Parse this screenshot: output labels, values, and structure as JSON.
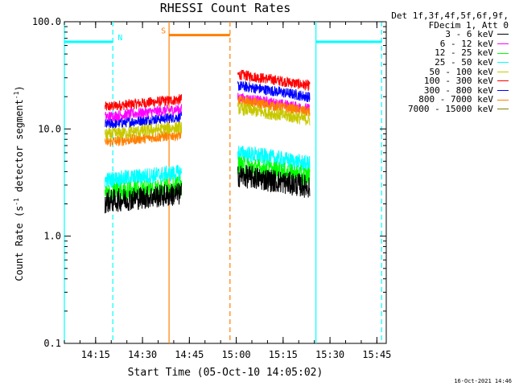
{
  "title": "RHESSI Count Rates",
  "xlabel": "Start Time (05-Oct-10 14:05:02)",
  "ylabel_main": "Count Rate (s",
  "ylabel_sup1": "-1",
  "ylabel_mid": " detector segment",
  "ylabel_sup2": "-1",
  "ylabel_end": ")",
  "legend_header": [
    "Det 1f,3f,4f,5f,6f,9f,",
    "FDecim 1, Att 0"
  ],
  "footer_text": "16-Oct-2021 14:46",
  "colors": {
    "axes": "#000000",
    "grid": "#000000",
    "night": "#00ffff",
    "saa": "#ff7f00"
  },
  "chart_data": {
    "type": "line",
    "title": "RHESSI Count Rates",
    "xlabel": "Start Time (05-Oct-10 14:05:02)",
    "ylabel": "Count Rate (s-1 detector segment-1)",
    "yscale": "log",
    "ylim": [
      0.1,
      100.0
    ],
    "xlim_min": [
      0,
      103
    ],
    "x_tick_labels": [
      {
        "min": 10,
        "label": "14:15"
      },
      {
        "min": 25,
        "label": "14:30"
      },
      {
        "min": 40,
        "label": "14:45"
      },
      {
        "min": 55,
        "label": "15:00"
      },
      {
        "min": 70,
        "label": "15:15"
      },
      {
        "min": 85,
        "label": "15:30"
      },
      {
        "min": 100,
        "label": "15:45"
      }
    ],
    "y_tick_labels": [
      {
        "value": 0.1,
        "label": "0.1"
      },
      {
        "value": 1.0,
        "label": "1.0"
      },
      {
        "value": 10.0,
        "label": "10.0"
      },
      {
        "value": 100.0,
        "label": "100.0"
      }
    ],
    "gaps": [
      [
        0,
        13.0
      ],
      [
        37.5,
        55.5
      ],
      [
        78.5,
        103
      ]
    ],
    "segments": [
      [
        13.0,
        37.5
      ],
      [
        55.5,
        78.5
      ]
    ],
    "series": [
      {
        "name": "3 - 6 keV",
        "color": "#000000",
        "level_a": 2.1,
        "level_b": 3.2,
        "noise": 0.11
      },
      {
        "name": "6 - 12 keV",
        "color": "#ff00ff",
        "level_a": 13.0,
        "level_b": 17.0,
        "noise": 0.05
      },
      {
        "name": "12 - 25 keV",
        "color": "#00ff00",
        "level_a": 2.5,
        "level_b": 4.0,
        "noise": 0.09
      },
      {
        "name": "25 - 50 keV",
        "color": "#00ffff",
        "level_a": 3.3,
        "level_b": 5.2,
        "noise": 0.08
      },
      {
        "name": "50 - 100 keV",
        "color": "#c8c800",
        "level_a": 8.8,
        "level_b": 13.5,
        "noise": 0.06
      },
      {
        "name": "100 - 300 keV",
        "color": "#ff0000",
        "level_a": 16.0,
        "level_b": 28.0,
        "noise": 0.05
      },
      {
        "name": "300 - 800 keV",
        "color": "#0000ff",
        "level_a": 11.0,
        "level_b": 22.0,
        "noise": 0.05
      },
      {
        "name": "800 - 7000 keV",
        "color": "#ff7f00",
        "level_a": 7.5,
        "level_b": 16.0,
        "noise": 0.05
      },
      {
        "name": "7000 - 15000 keV",
        "color": "#808000",
        "level_a": 0.0,
        "level_b": 0.0,
        "noise": 0.0
      }
    ],
    "markers": [
      {
        "label": "N",
        "color": "#00ffff",
        "value": 65.0,
        "from_min": 0,
        "to_min": 15.5
      },
      {
        "label": "",
        "color": "#00ffff",
        "value": 65.0,
        "from_min": 80.5,
        "to_min": 101.5
      },
      {
        "label": "S",
        "color": "#ff7f00",
        "value": 75.0,
        "from_min": 33.5,
        "to_min": 53.0
      }
    ],
    "vlines": [
      {
        "min": 0,
        "color": "#00ffff",
        "style": "solid"
      },
      {
        "min": 15.5,
        "color": "#00ffff",
        "style": "dashed"
      },
      {
        "min": 33.5,
        "color": "#ff7f00",
        "style": "solid"
      },
      {
        "min": 53.0,
        "color": "#ff7f00",
        "style": "dashed"
      },
      {
        "min": 80.5,
        "color": "#00ffff",
        "style": "solid"
      },
      {
        "min": 101.5,
        "color": "#00ffff",
        "style": "dashed"
      }
    ]
  }
}
